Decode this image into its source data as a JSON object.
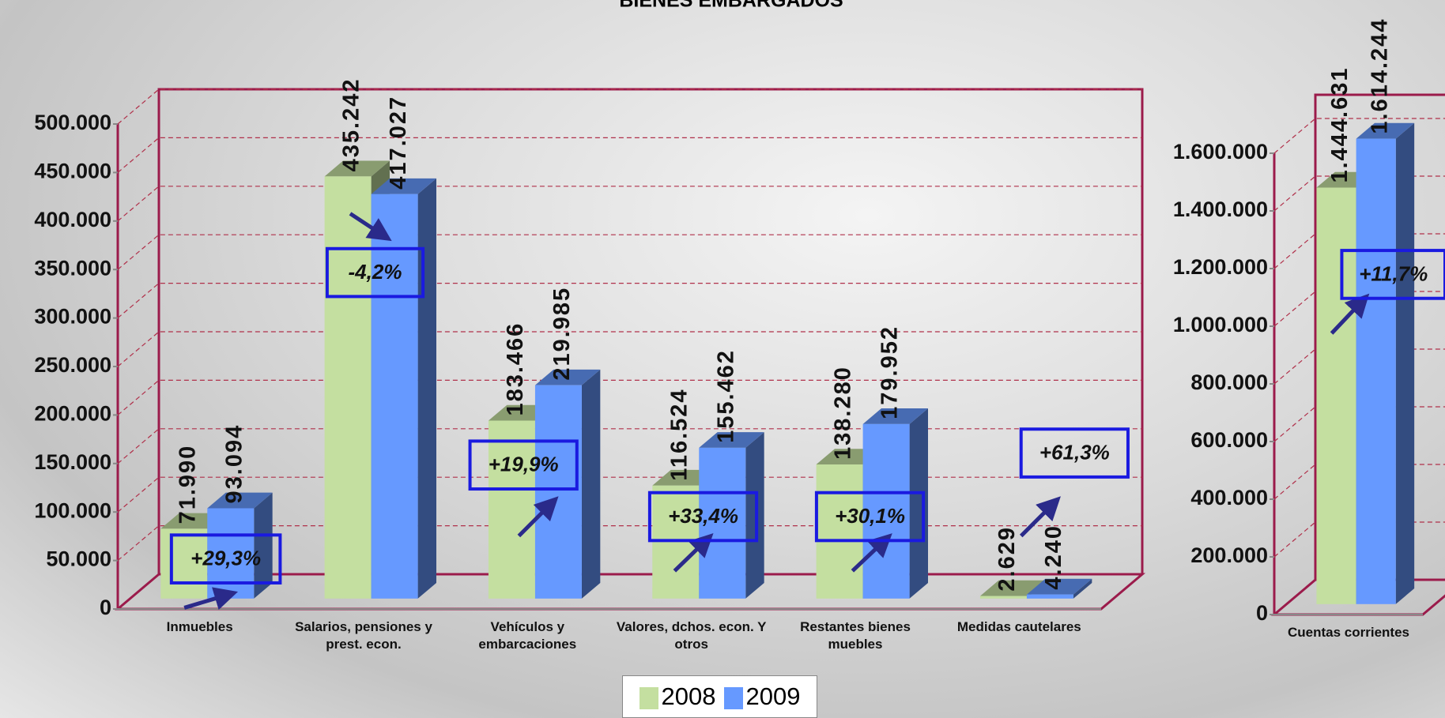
{
  "chart_data": [
    {
      "type": "bar",
      "title": "BIENES EMBARGADOS",
      "categories": [
        "Inmuebles",
        "Salarios, pensiones y prest. econ.",
        "Vehículos y embarcaciones",
        "Valores, dchos. econ. Y otros",
        "Restantes bienes muebles",
        "Medidas cautelares"
      ],
      "series": [
        {
          "name": "2008",
          "color": "#c4dfa0",
          "values": [
            71990,
            435242,
            183466,
            116524,
            138280,
            2629
          ],
          "value_labels": [
            "71.990",
            "435.242",
            "183.466",
            "116.524",
            "138.280",
            "2.629"
          ]
        },
        {
          "name": "2009",
          "color": "#6699ff",
          "values": [
            93094,
            417027,
            219985,
            155462,
            179952,
            4240
          ],
          "value_labels": [
            "93.094",
            "417.027",
            "219.985",
            "155.462",
            "179.952",
            "4.240"
          ]
        }
      ],
      "annotations": [
        "+29,3%",
        "-4,2%",
        "+19,9%",
        "+33,4%",
        "+30,1%",
        "+61,3%"
      ],
      "ylim": [
        0,
        500000
      ],
      "yticks": [
        0,
        {
          "value": 50000,
          "label": "50.000"
        },
        {
          "value": 100000,
          "label": "100.000"
        },
        {
          "value": 150000,
          "label": "150.000"
        },
        {
          "value": 200000,
          "label": "200.000"
        },
        {
          "value": 250000,
          "label": "250.000"
        },
        {
          "value": 300000,
          "label": "300.000"
        },
        {
          "value": 350000,
          "label": "350.000"
        },
        {
          "value": 400000,
          "label": "400.000"
        },
        {
          "value": 450000,
          "label": "450.000"
        },
        {
          "value": 500000,
          "label": "500.000"
        }
      ],
      "grid": true,
      "legend": "bottom"
    },
    {
      "type": "bar",
      "categories": [
        "Cuentas corrientes"
      ],
      "series": [
        {
          "color": "#c4dfa0",
          "values": [
            1444631
          ],
          "value_labels": [
            "1.444.631"
          ]
        },
        {
          "color": "#6699ff",
          "values": [
            1614244
          ],
          "value_labels": [
            "1.614.244"
          ]
        }
      ],
      "annotations": [
        "+11,7%"
      ],
      "ylim": [
        0,
        1600000
      ],
      "yticks": [
        0,
        {
          "value": 200000,
          "label": "200.000"
        },
        {
          "value": 400000,
          "label": "400.000"
        },
        {
          "value": 600000,
          "label": "600.000"
        },
        {
          "value": 800000,
          "label": "800.000"
        },
        {
          "value": 1000000,
          "label": "1.000.000"
        },
        {
          "value": 1200000,
          "label": "1.200.000"
        },
        {
          "value": 1400000,
          "label": "1.400.000"
        },
        {
          "value": 1600000,
          "label": "1.600.000"
        }
      ],
      "grid": true
    }
  ]
}
